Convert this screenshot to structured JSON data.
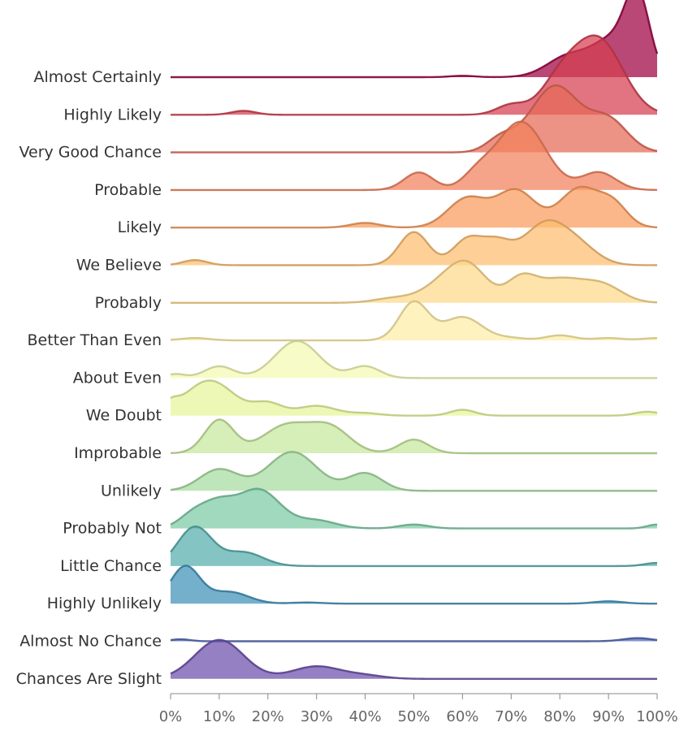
{
  "chart_data": {
    "type": "ridgeline",
    "title": "",
    "xlabel": "",
    "ylabel": "",
    "xlim": [
      0,
      100
    ],
    "x_ticks": [
      0,
      10,
      20,
      30,
      40,
      50,
      60,
      70,
      80,
      90,
      100
    ],
    "x_tick_labels": [
      "0%",
      "10%",
      "20%",
      "30%",
      "40%",
      "50%",
      "60%",
      "70%",
      "80%",
      "90%",
      "100%"
    ],
    "series": [
      {
        "name": "Almost Certainly",
        "color": "#9e0142",
        "peaks": [
          [
            60,
            0.035,
            2.5
          ],
          [
            82,
            0.55,
            4.5
          ],
          [
            91,
            0.9,
            4
          ],
          [
            96,
            1.9,
            2.5
          ]
        ]
      },
      {
        "name": "Highly Likely",
        "color": "#d53e4f",
        "peaks": [
          [
            15,
            0.1,
            2.5
          ],
          [
            70,
            0.25,
            3
          ],
          [
            80,
            0.8,
            4
          ],
          [
            88,
            1.9,
            5
          ]
        ]
      },
      {
        "name": "Very Good Chance",
        "color": "#e46a56",
        "peaks": [
          [
            68,
            0.35,
            3
          ],
          [
            79,
            1.7,
            5
          ],
          [
            90,
            0.8,
            4
          ]
        ]
      },
      {
        "name": "Probable",
        "color": "#f3815c",
        "peaks": [
          [
            51,
            0.45,
            3
          ],
          [
            63,
            0.35,
            3
          ],
          [
            72,
            1.75,
            5
          ],
          [
            88,
            0.45,
            3.5
          ]
        ]
      },
      {
        "name": "Likely",
        "color": "#f99b5c",
        "peaks": [
          [
            40,
            0.12,
            3
          ],
          [
            61,
            0.75,
            4
          ],
          [
            71,
            0.95,
            4
          ],
          [
            84,
            1.0,
            4
          ],
          [
            91,
            0.55,
            3
          ]
        ]
      },
      {
        "name": "We Believe",
        "color": "#fdbe6f",
        "peaks": [
          [
            5,
            0.13,
            2.5
          ],
          [
            50,
            0.85,
            3
          ],
          [
            61,
            0.65,
            3
          ],
          [
            67,
            0.55,
            3
          ],
          [
            77,
            1.05,
            4.5
          ],
          [
            84,
            0.4,
            4
          ]
        ]
      },
      {
        "name": "Probably",
        "color": "#fed889",
        "peaks": [
          [
            46,
            0.12,
            4
          ],
          [
            55,
            0.35,
            4
          ],
          [
            61,
            0.95,
            4
          ],
          [
            72,
            0.55,
            3
          ],
          [
            80,
            0.6,
            5
          ],
          [
            89,
            0.4,
            4
          ]
        ]
      },
      {
        "name": "Better Than Even",
        "color": "#feeda5",
        "peaks": [
          [
            5,
            0.06,
            3
          ],
          [
            50,
            0.98,
            3
          ],
          [
            60,
            0.6,
            4
          ],
          [
            70,
            0.06,
            3
          ],
          [
            80,
            0.13,
            3
          ],
          [
            90,
            0.06,
            3
          ],
          [
            100,
            0.06,
            3
          ]
        ]
      },
      {
        "name": "About Even",
        "color": "#f4f9b1",
        "peaks": [
          [
            1,
            0.1,
            2
          ],
          [
            10,
            0.3,
            3
          ],
          [
            26,
            0.95,
            4.5
          ],
          [
            40,
            0.3,
            3
          ]
        ]
      },
      {
        "name": "We Doubt",
        "color": "#e6f59a",
        "peaks": [
          [
            0,
            0.2,
            1.5
          ],
          [
            8,
            0.9,
            5
          ],
          [
            20,
            0.3,
            3
          ],
          [
            30,
            0.25,
            4
          ],
          [
            40,
            0.06,
            3
          ],
          [
            60,
            0.15,
            2.5
          ],
          [
            98,
            0.1,
            2.5
          ]
        ]
      },
      {
        "name": "Improbable",
        "color": "#c6e79b",
        "peaks": [
          [
            10,
            0.85,
            3
          ],
          [
            24,
            0.72,
            5
          ],
          [
            33,
            0.6,
            4
          ],
          [
            50,
            0.35,
            3
          ]
        ]
      },
      {
        "name": "Unlikely",
        "color": "#a6db9f",
        "peaks": [
          [
            10,
            0.55,
            4
          ],
          [
            25,
            1.0,
            5
          ],
          [
            40,
            0.45,
            3.5
          ]
        ]
      },
      {
        "name": "Probably Not",
        "color": "#7ccba4",
        "peaks": [
          [
            5,
            0.4,
            3
          ],
          [
            18,
            1.0,
            4.5
          ],
          [
            10,
            0.5,
            3
          ],
          [
            30,
            0.2,
            4
          ],
          [
            50,
            0.1,
            3
          ],
          [
            100,
            0.1,
            2
          ]
        ]
      },
      {
        "name": "Little Chance",
        "color": "#55aeac",
        "peaks": [
          [
            5,
            1.0,
            3.5
          ],
          [
            15,
            0.35,
            4
          ],
          [
            100,
            0.08,
            2.5
          ]
        ]
      },
      {
        "name": "Highly Unlikely",
        "color": "#3f91b9",
        "peaks": [
          [
            3,
            0.95,
            3
          ],
          [
            12,
            0.3,
            4
          ],
          [
            28,
            0.03,
            3
          ],
          [
            90,
            0.06,
            3
          ]
        ]
      },
      {
        "name": "Almost No Chance",
        "color": "#5166b5",
        "peaks": [
          [
            2,
            0.05,
            2
          ],
          [
            96,
            0.08,
            3
          ]
        ]
      },
      {
        "name": "Chances Are Slight",
        "color": "#6b4fab",
        "peaks": [
          [
            10,
            1.0,
            5
          ],
          [
            30,
            0.32,
            5
          ],
          [
            40,
            0.08,
            4
          ]
        ]
      }
    ]
  }
}
